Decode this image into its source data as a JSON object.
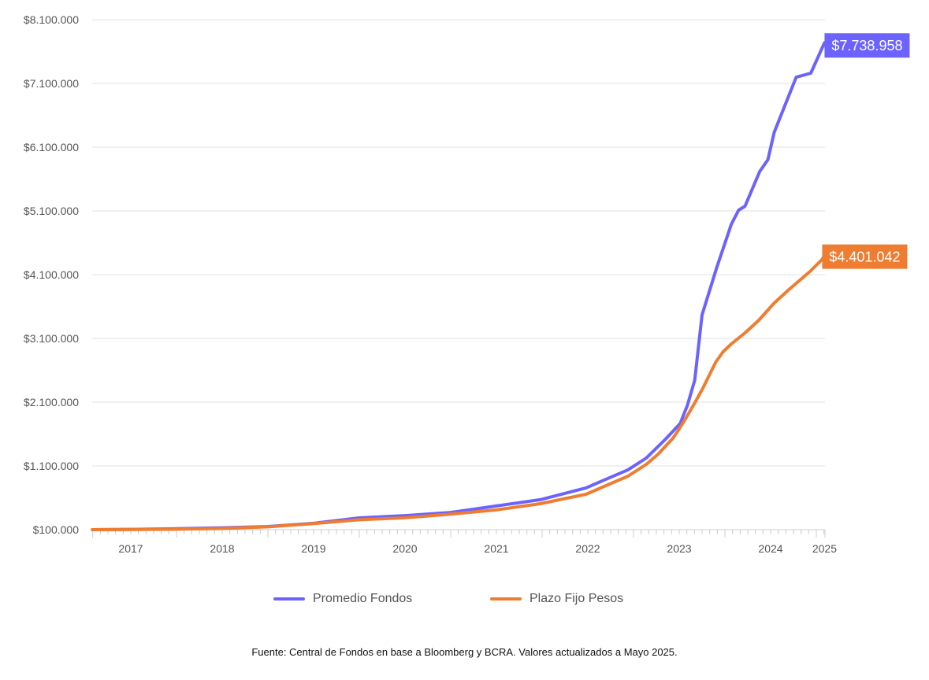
{
  "chart_data": {
    "type": "line",
    "title": "",
    "xlabel": "",
    "ylabel": "",
    "ylim": [
      100000,
      8100000
    ],
    "xlim": [
      2017.08,
      2025.09
    ],
    "grid": true,
    "legend_position": "bottom",
    "y_ticks": [
      100000,
      1100000,
      2100000,
      3100000,
      4100000,
      5100000,
      6100000,
      7100000,
      8100000
    ],
    "y_tick_labels": [
      "$100.000",
      "$1.100.000",
      "$2.100.000",
      "$3.100.000",
      "$4.100.000",
      "$5.100.000",
      "$6.100.000",
      "$7.100.000",
      "$8.100.000"
    ],
    "x_tick_labels": [
      {
        "label": "2017",
        "at": 2017.5
      },
      {
        "label": "2018",
        "at": 2018.5
      },
      {
        "label": "2019",
        "at": 2019.5
      },
      {
        "label": "2020",
        "at": 2020.5
      },
      {
        "label": "2021",
        "at": 2021.5
      },
      {
        "label": "2022",
        "at": 2022.5
      },
      {
        "label": "2023",
        "at": 2023.5
      },
      {
        "label": "2024",
        "at": 2024.5
      },
      {
        "label": "2025",
        "at": 2025.09
      }
    ],
    "series": [
      {
        "name": "Promedio Fondos",
        "color": "#6c63ff",
        "end_label": "$7.738.958",
        "points": [
          [
            2017.08,
            100000
          ],
          [
            2017.5,
            105000
          ],
          [
            2018.0,
            115000
          ],
          [
            2018.5,
            130000
          ],
          [
            2019.0,
            150000
          ],
          [
            2019.5,
            200000
          ],
          [
            2020.0,
            285000
          ],
          [
            2020.49,
            320000
          ],
          [
            2021.0,
            370000
          ],
          [
            2021.49,
            470000
          ],
          [
            2021.98,
            570000
          ],
          [
            2022.48,
            755000
          ],
          [
            2022.94,
            1040000
          ],
          [
            2023.14,
            1223000
          ],
          [
            2023.35,
            1520000
          ],
          [
            2023.51,
            1765000
          ],
          [
            2023.59,
            2050000
          ],
          [
            2023.67,
            2446000
          ],
          [
            2023.75,
            3470000
          ],
          [
            2023.91,
            4211000
          ],
          [
            2024.07,
            4890000
          ],
          [
            2024.15,
            5112000
          ],
          [
            2024.22,
            5174000
          ],
          [
            2024.38,
            5717000
          ],
          [
            2024.47,
            5902000
          ],
          [
            2024.54,
            6335000
          ],
          [
            2024.78,
            7199000
          ],
          [
            2024.94,
            7261000
          ],
          [
            2025.09,
            7738958
          ]
        ]
      },
      {
        "name": "Plazo Fijo Pesos",
        "color": "#ee7d31",
        "end_label": "$4.401.042",
        "points": [
          [
            2017.08,
            100000
          ],
          [
            2017.5,
            102000
          ],
          [
            2018.0,
            108000
          ],
          [
            2018.5,
            118000
          ],
          [
            2019.0,
            145000
          ],
          [
            2019.5,
            195000
          ],
          [
            2020.0,
            255000
          ],
          [
            2020.49,
            285000
          ],
          [
            2021.0,
            345000
          ],
          [
            2021.49,
            409000
          ],
          [
            2021.98,
            507000
          ],
          [
            2022.48,
            655000
          ],
          [
            2022.94,
            940000
          ],
          [
            2023.14,
            1125000
          ],
          [
            2023.27,
            1285000
          ],
          [
            2023.43,
            1532000
          ],
          [
            2023.5,
            1680000
          ],
          [
            2023.57,
            1841000
          ],
          [
            2023.67,
            2088000
          ],
          [
            2023.76,
            2323000
          ],
          [
            2023.9,
            2730000
          ],
          [
            2023.98,
            2890000
          ],
          [
            2024.07,
            3014000
          ],
          [
            2024.22,
            3186000
          ],
          [
            2024.37,
            3384000
          ],
          [
            2024.54,
            3655000
          ],
          [
            2024.7,
            3865000
          ],
          [
            2024.93,
            4149000
          ],
          [
            2025.06,
            4334000
          ],
          [
            2025.09,
            4401042
          ]
        ]
      }
    ]
  },
  "legend": {
    "items": [
      "Promedio Fondos",
      "Plazo Fijo Pesos"
    ]
  },
  "source": "Fuente: Central de Fondos en base a Bloomberg y BCRA. Valores actualizados a Mayo 2025."
}
